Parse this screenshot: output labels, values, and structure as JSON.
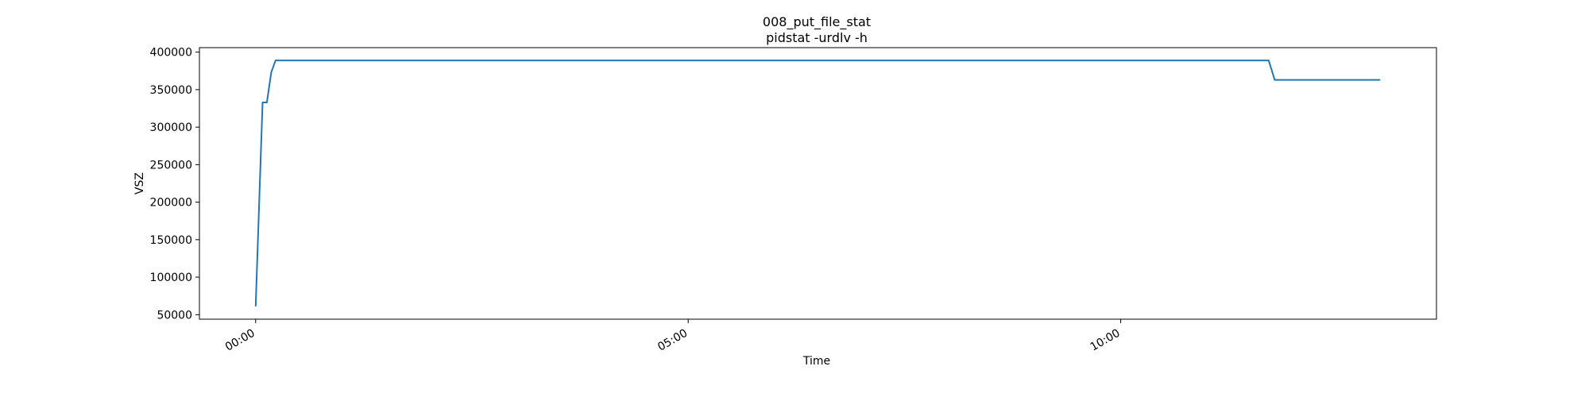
{
  "chart_data": {
    "type": "line",
    "title": "008_put_file_stat",
    "subtitle": "pidstat -urdlv -h",
    "xlabel": "Time",
    "ylabel": "VSZ",
    "xlim_minutes": [
      -0.65,
      13.65
    ],
    "ylim": [
      44000,
      406000
    ],
    "grid": false,
    "legend": "none",
    "line_color": "#1f77b4",
    "x_ticks": [
      {
        "minutes": 0,
        "label": "00:00"
      },
      {
        "minutes": 5,
        "label": "05:00"
      },
      {
        "minutes": 10,
        "label": "10:00"
      }
    ],
    "y_ticks": [
      50000,
      100000,
      150000,
      200000,
      250000,
      300000,
      350000,
      400000
    ],
    "y_tick_labels": [
      "50000",
      "100000",
      "150000",
      "200000",
      "250000",
      "300000",
      "350000",
      "400000"
    ],
    "series": [
      {
        "points": [
          [
            0.0,
            61000
          ],
          [
            0.08,
            333000
          ],
          [
            0.13,
            333000
          ],
          [
            0.18,
            373000
          ],
          [
            0.23,
            389000
          ],
          [
            11.71,
            389000
          ],
          [
            11.78,
            363000
          ],
          [
            13.0,
            363000
          ]
        ]
      }
    ]
  }
}
